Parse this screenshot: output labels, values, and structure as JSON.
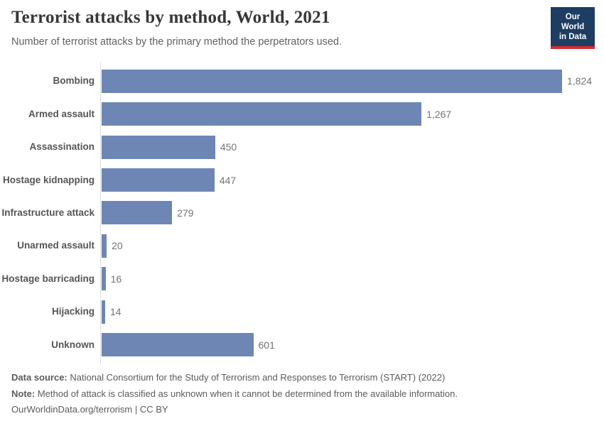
{
  "header": {
    "title": "Terrorist attacks by method, World, 2021",
    "subtitle": "Number of terrorist attacks by the primary method the perpetrators used.",
    "logo": {
      "line1": "Our World",
      "line2": "in Data"
    }
  },
  "chart_data": {
    "type": "bar",
    "orientation": "horizontal",
    "title": "Terrorist attacks by method, World, 2021",
    "xlabel": "",
    "ylabel": "",
    "categories": [
      "Bombing",
      "Armed assault",
      "Assassination",
      "Hostage kidnapping",
      "Infrastructure attack",
      "Unarmed assault",
      "Hostage barricading",
      "Hijacking",
      "Unknown"
    ],
    "values": [
      1824,
      1267,
      450,
      447,
      279,
      20,
      16,
      14,
      601
    ],
    "value_labels": [
      "1,824",
      "1,267",
      "450",
      "447",
      "279",
      "20",
      "16",
      "14",
      "601"
    ],
    "xlim": [
      0,
      1824
    ],
    "grid": false,
    "legend": false,
    "bar_color": "#6e86b4",
    "axis_line_color": "#dcdcdc"
  },
  "footer": {
    "data_source_label": "Data source:",
    "data_source_text": " National Consortium for the Study of Terrorism and Responses to Terrorism (START) (2022)",
    "note_label": "Note:",
    "note_text": " Method of attack is classified as unknown when it cannot be determined from the available information.",
    "cc_line": "OurWorldinData.org/terrorism | CC BY"
  },
  "colors": {
    "bar": "#6e86b4",
    "logo_bg": "#1d3d63",
    "logo_stripe": "#d42b2f",
    "title_text": "#383636",
    "body_text": "#5b5b5b"
  }
}
